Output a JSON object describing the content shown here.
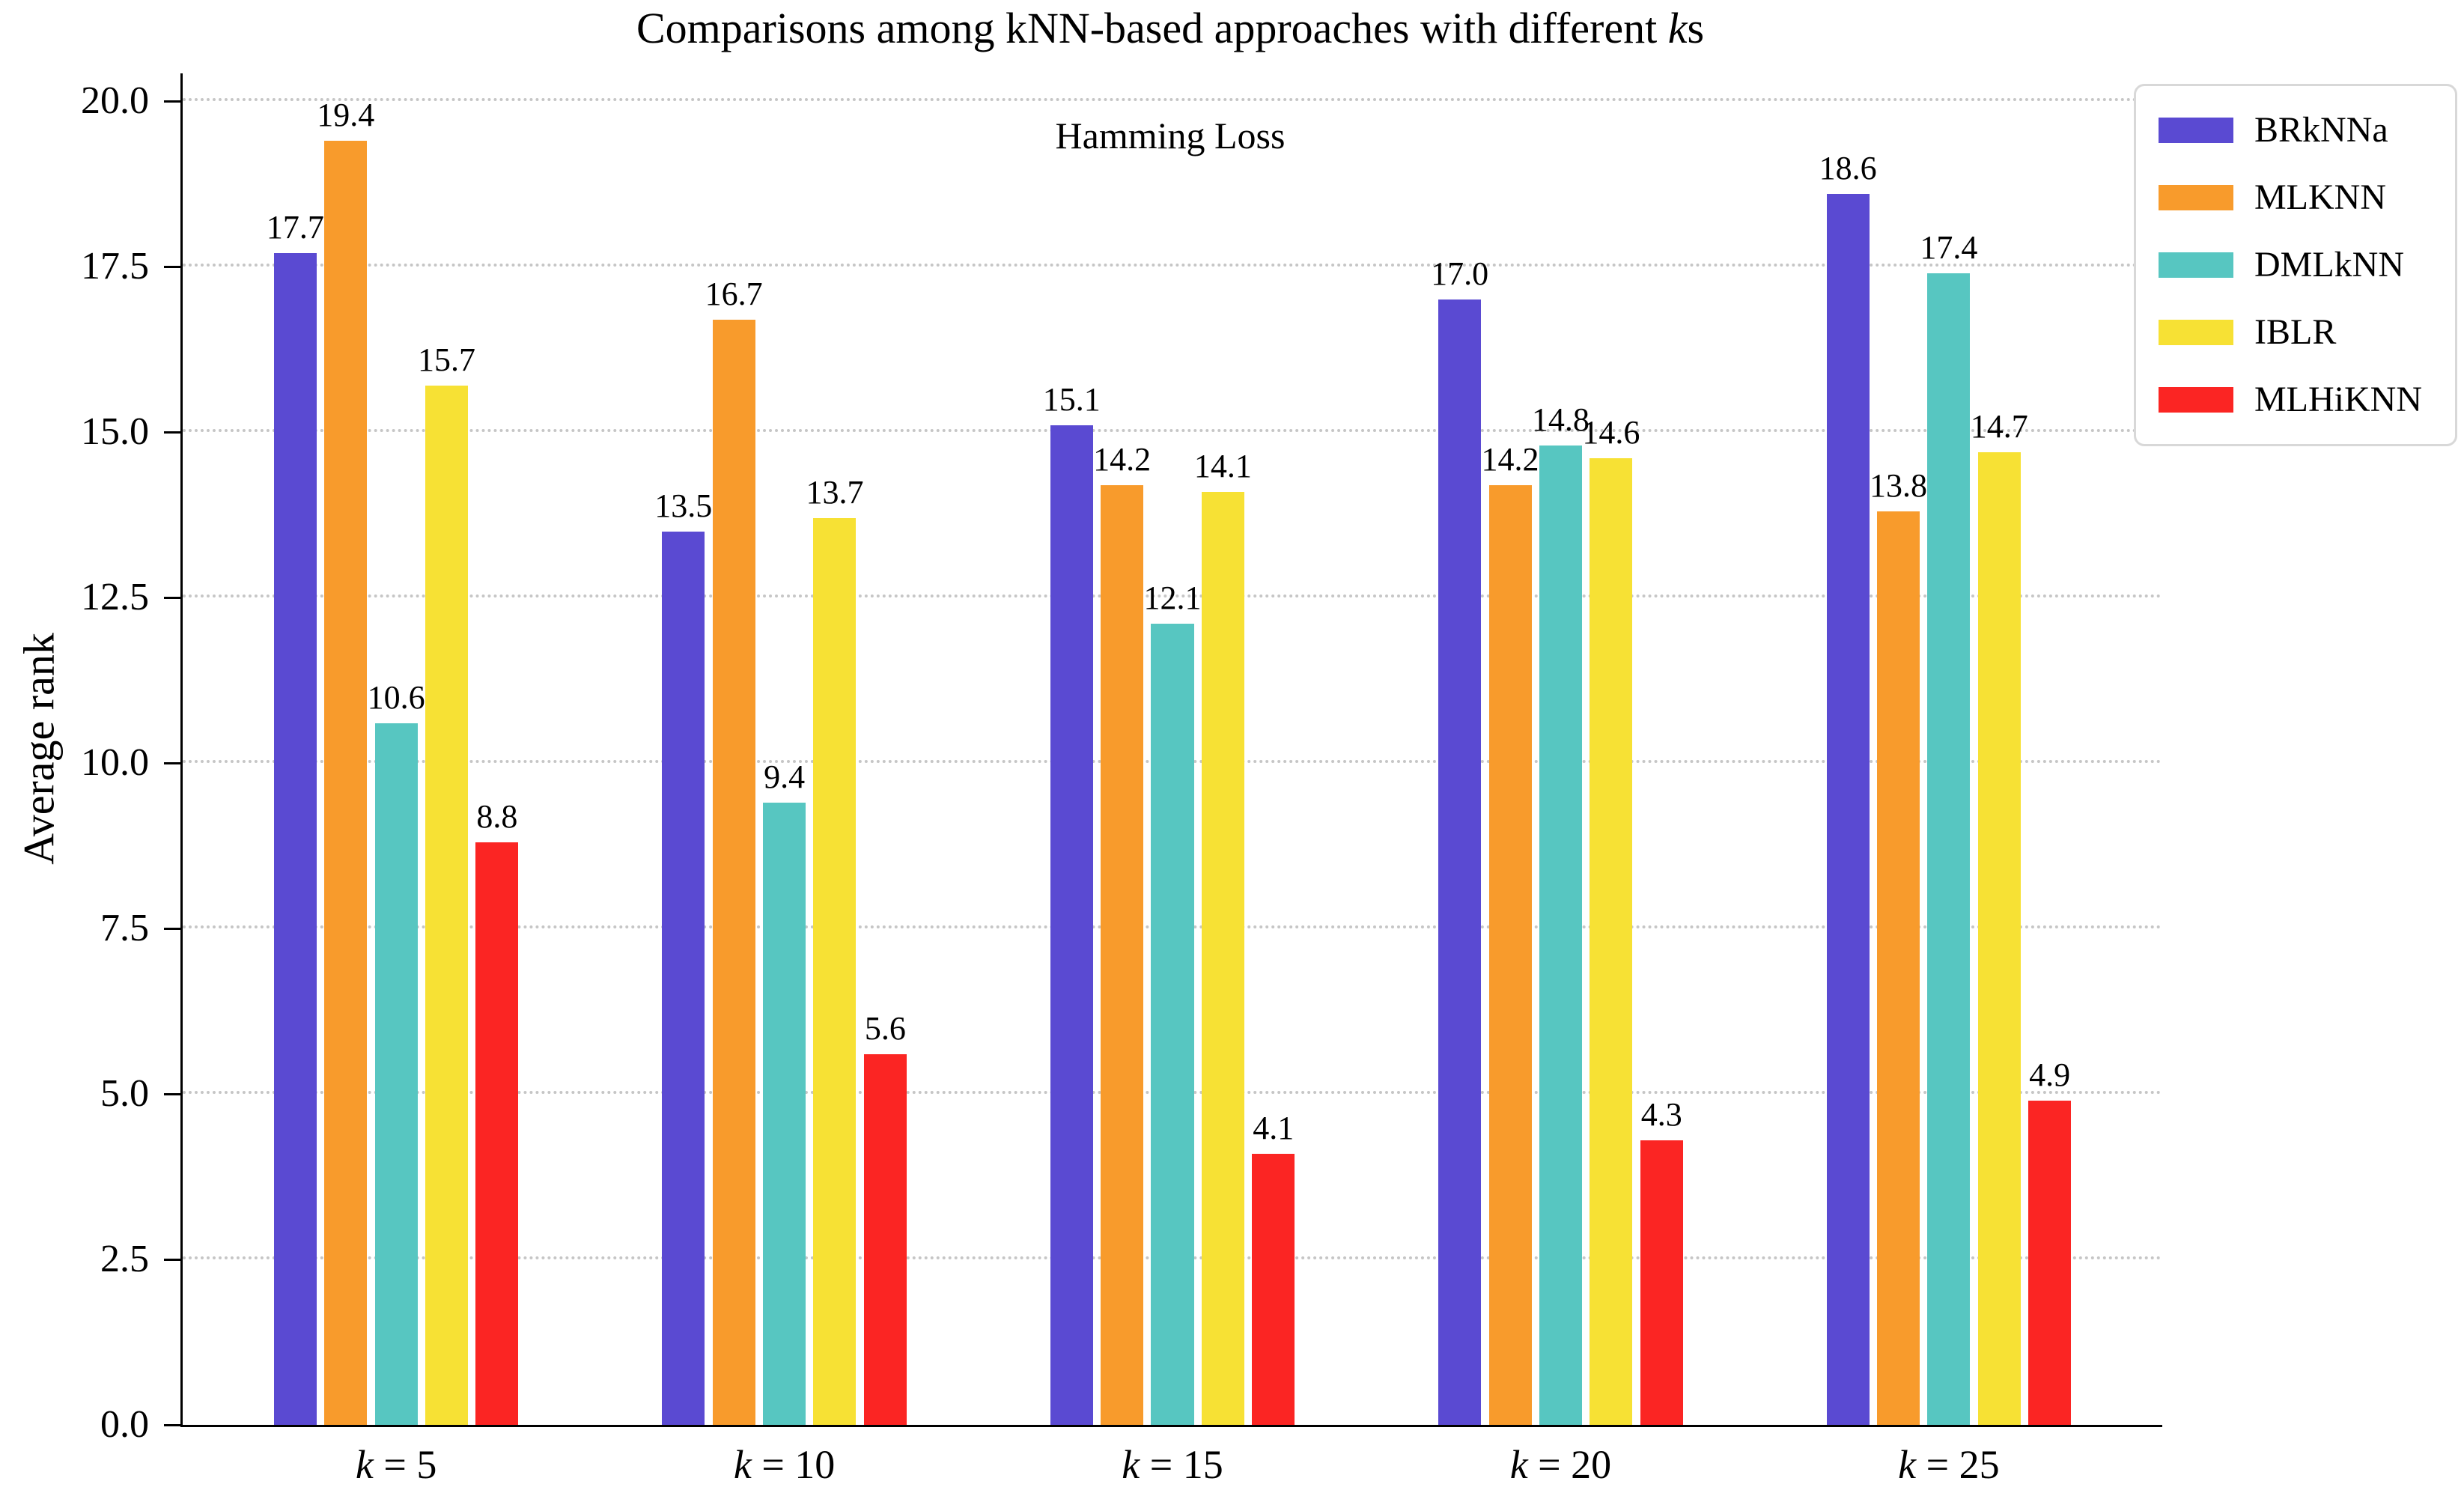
{
  "figure": {
    "title_prefix": "Comparisons among kNN-based approaches with different ",
    "title_k": "k",
    "title_suffix": "s",
    "inner_title": "Hamming Loss",
    "ylabel": "Average rank"
  },
  "chart_data": {
    "type": "bar",
    "title": "Comparisons among kNN-based approaches with different ks",
    "inner_title": "Hamming Loss",
    "xlabel": "",
    "ylabel": "Average rank",
    "categories": [
      "k = 5",
      "k = 10",
      "k = 15",
      "k = 20",
      "k = 25"
    ],
    "series": [
      {
        "name": "BRkNNa",
        "color": "#5a4ad2",
        "values": [
          17.7,
          13.5,
          15.1,
          17.0,
          18.6
        ]
      },
      {
        "name": "MLKNN",
        "color": "#f89b2c",
        "values": [
          19.4,
          16.7,
          14.2,
          14.2,
          13.8
        ]
      },
      {
        "name": "DMLkNN",
        "color": "#57c6c1",
        "values": [
          10.6,
          9.4,
          12.1,
          14.8,
          17.4
        ]
      },
      {
        "name": "IBLR",
        "color": "#f7e134",
        "values": [
          15.7,
          13.7,
          14.1,
          14.6,
          14.7
        ]
      },
      {
        "name": "MLHiKNN",
        "color": "#fb2523",
        "values": [
          8.8,
          5.6,
          4.1,
          4.3,
          4.9
        ]
      }
    ],
    "ylim": [
      0,
      20
    ],
    "yticks": [
      {
        "value": 0,
        "label": "0.0"
      },
      {
        "value": 2.5,
        "label": "2.5"
      },
      {
        "value": 5,
        "label": "5.0"
      },
      {
        "value": 7.5,
        "label": "7.5"
      },
      {
        "value": 10,
        "label": "10.0"
      },
      {
        "value": 12.5,
        "label": "12.5"
      },
      {
        "value": 15,
        "label": "15.0"
      },
      {
        "value": 17.5,
        "label": "17.5"
      },
      {
        "value": 20,
        "label": "20.0"
      }
    ],
    "grid": "horizontal dotted",
    "gridline_color": "#c6c6c6",
    "axis_color": "#000000",
    "legend_position": "outside top-right",
    "bar_label_decimals": 1
  }
}
